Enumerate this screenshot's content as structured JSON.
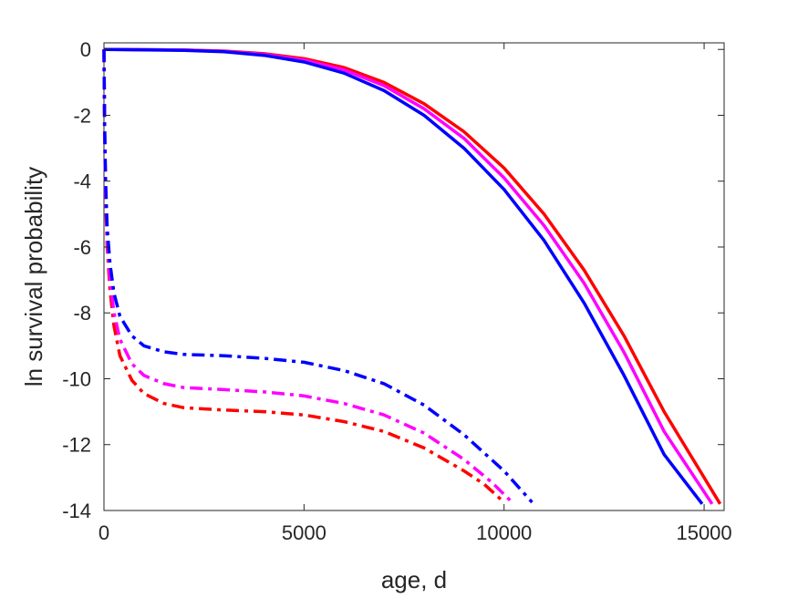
{
  "chart_data": {
    "type": "line",
    "title": "",
    "xlabel": "age, d",
    "ylabel": "ln survival probability",
    "xlim": [
      0,
      15500
    ],
    "ylim": [
      -14,
      0.2
    ],
    "x_ticks": [
      0,
      5000,
      10000,
      15000
    ],
    "x_tick_labels": [
      "0",
      "5000",
      "10000",
      "15000"
    ],
    "y_ticks": [
      0,
      -2,
      -4,
      -6,
      -8,
      -10,
      -12,
      -14
    ],
    "y_tick_labels": [
      "0",
      "-2",
      "-4",
      "-6",
      "-8",
      "-10",
      "-12",
      "-14"
    ],
    "grid": false,
    "legend": "none",
    "series": [
      {
        "color": "#ff0000",
        "style": "solid",
        "points": [
          [
            0,
            0
          ],
          [
            2000,
            -0.02
          ],
          [
            3000,
            -0.05
          ],
          [
            4000,
            -0.13
          ],
          [
            5000,
            -0.28
          ],
          [
            6000,
            -0.55
          ],
          [
            7000,
            -1.0
          ],
          [
            8000,
            -1.65
          ],
          [
            9000,
            -2.5
          ],
          [
            10000,
            -3.6
          ],
          [
            11000,
            -5.0
          ],
          [
            12000,
            -6.7
          ],
          [
            13000,
            -8.7
          ],
          [
            14000,
            -11.0
          ],
          [
            15400,
            -13.8
          ]
        ]
      },
      {
        "color": "#ff00ff",
        "style": "solid",
        "points": [
          [
            0,
            0
          ],
          [
            2000,
            -0.02
          ],
          [
            3000,
            -0.06
          ],
          [
            4000,
            -0.15
          ],
          [
            5000,
            -0.32
          ],
          [
            6000,
            -0.62
          ],
          [
            7000,
            -1.1
          ],
          [
            8000,
            -1.8
          ],
          [
            9000,
            -2.7
          ],
          [
            10000,
            -3.9
          ],
          [
            11000,
            -5.35
          ],
          [
            12000,
            -7.1
          ],
          [
            13000,
            -9.2
          ],
          [
            14000,
            -11.6
          ],
          [
            15200,
            -13.8
          ]
        ]
      },
      {
        "color": "#0000ff",
        "style": "solid",
        "points": [
          [
            0,
            0
          ],
          [
            2000,
            -0.03
          ],
          [
            3000,
            -0.07
          ],
          [
            4000,
            -0.18
          ],
          [
            5000,
            -0.38
          ],
          [
            6000,
            -0.72
          ],
          [
            7000,
            -1.25
          ],
          [
            8000,
            -2.0
          ],
          [
            9000,
            -3.0
          ],
          [
            10000,
            -4.25
          ],
          [
            11000,
            -5.8
          ],
          [
            12000,
            -7.7
          ],
          [
            13000,
            -9.9
          ],
          [
            14000,
            -12.3
          ],
          [
            14950,
            -13.8
          ]
        ]
      },
      {
        "color": "#ff0000",
        "style": "dashdot",
        "points": [
          [
            0,
            0
          ],
          [
            15,
            -2.5
          ],
          [
            40,
            -4.5
          ],
          [
            80,
            -6.0
          ],
          [
            150,
            -7.3
          ],
          [
            250,
            -8.4
          ],
          [
            400,
            -9.3
          ],
          [
            700,
            -10.05
          ],
          [
            1000,
            -10.45
          ],
          [
            1500,
            -10.75
          ],
          [
            2000,
            -10.88
          ],
          [
            3000,
            -10.95
          ],
          [
            4000,
            -11.0
          ],
          [
            5000,
            -11.1
          ],
          [
            6000,
            -11.3
          ],
          [
            7000,
            -11.6
          ],
          [
            8000,
            -12.1
          ],
          [
            9000,
            -12.8
          ],
          [
            9500,
            -13.2
          ],
          [
            10000,
            -13.75
          ]
        ]
      },
      {
        "color": "#ff00ff",
        "style": "dashdot",
        "points": [
          [
            0,
            0
          ],
          [
            15,
            -2.4
          ],
          [
            40,
            -4.3
          ],
          [
            80,
            -5.8
          ],
          [
            150,
            -7.0
          ],
          [
            250,
            -8.0
          ],
          [
            400,
            -8.8
          ],
          [
            700,
            -9.55
          ],
          [
            1000,
            -9.9
          ],
          [
            1500,
            -10.15
          ],
          [
            2000,
            -10.27
          ],
          [
            3000,
            -10.33
          ],
          [
            4000,
            -10.4
          ],
          [
            5000,
            -10.52
          ],
          [
            6000,
            -10.75
          ],
          [
            7000,
            -11.1
          ],
          [
            8000,
            -11.65
          ],
          [
            9000,
            -12.45
          ],
          [
            9700,
            -13.15
          ],
          [
            10200,
            -13.75
          ]
        ]
      },
      {
        "color": "#0000ff",
        "style": "dashdot",
        "points": [
          [
            0,
            0
          ],
          [
            15,
            -2.2
          ],
          [
            40,
            -4.0
          ],
          [
            80,
            -5.4
          ],
          [
            150,
            -6.5
          ],
          [
            250,
            -7.4
          ],
          [
            400,
            -8.1
          ],
          [
            700,
            -8.7
          ],
          [
            1000,
            -9.0
          ],
          [
            1500,
            -9.18
          ],
          [
            2000,
            -9.26
          ],
          [
            3000,
            -9.3
          ],
          [
            4000,
            -9.38
          ],
          [
            5000,
            -9.5
          ],
          [
            6000,
            -9.75
          ],
          [
            7000,
            -10.15
          ],
          [
            8000,
            -10.8
          ],
          [
            9000,
            -11.7
          ],
          [
            10000,
            -12.8
          ],
          [
            10700,
            -13.75
          ]
        ]
      }
    ]
  }
}
